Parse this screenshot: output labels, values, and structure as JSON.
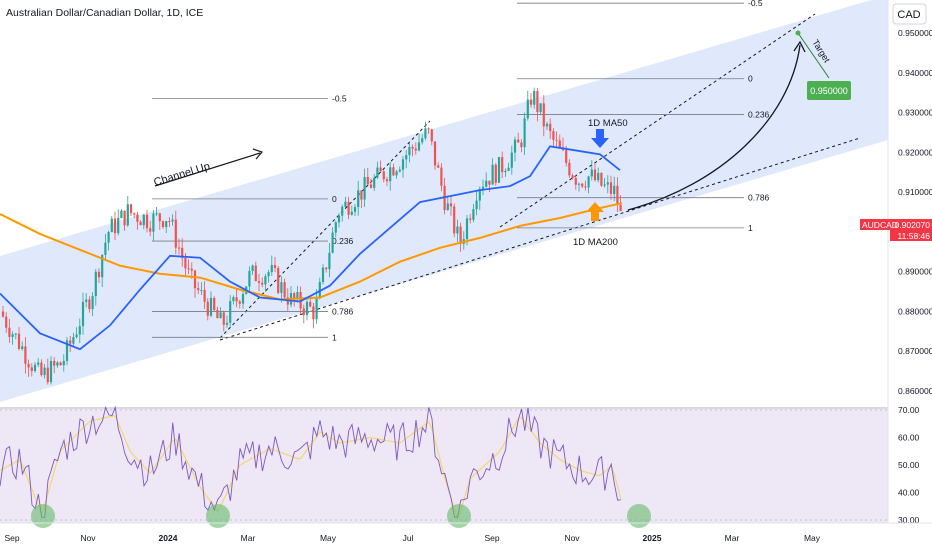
{
  "header": {
    "title": "Australian Dollar/Canadian Dollar, 1D, ICE",
    "currency": "CAD"
  },
  "chart_data": {
    "type": "candlestick",
    "symbol": "AUDCAD",
    "interval": "1D",
    "price_ticks": [
      "0.950000",
      "0.940000",
      "0.930000",
      "0.920000",
      "0.910000",
      "0.900000",
      "0.890000",
      "0.880000",
      "0.870000",
      "0.860000"
    ],
    "rsi_ticks": [
      "70.00",
      "60.00",
      "50.00",
      "40.00",
      "30.00"
    ],
    "time_ticks": [
      "Sep",
      "Nov",
      "2024",
      "Mar",
      "May",
      "Jul",
      "Sep",
      "Nov",
      "2025",
      "Mar",
      "May"
    ],
    "last_price": "0.902070",
    "countdown": "11:58:46",
    "target_price": "0.950000",
    "channel_label": "Channel Up",
    "target_label": "Target",
    "ma50_label": "1D MA50",
    "ma200_label": "1D MA200",
    "fib_left": {
      "levels": [
        "-0.5",
        "0",
        "0.236",
        "0.786",
        "1"
      ],
      "prices": [
        0.9335,
        0.9083,
        0.8977,
        0.88,
        0.8735
      ]
    },
    "fib_right": {
      "levels": [
        "-0.5",
        "0",
        "0.236",
        "0.786",
        "1"
      ],
      "prices": [
        0.9575,
        0.9385,
        0.9295,
        0.9086,
        0.901
      ]
    },
    "colors": {
      "up": "#26a69a",
      "down": "#ef5350",
      "ma50": "#2962ff",
      "ma200": "#ff9800",
      "channel": "#d6e2fb",
      "rsi": "#7e57c2",
      "rsi_ma": "#f5d76e",
      "rsi_bg": "#ede7f6",
      "target_box": "#4caf50",
      "price_box": "#f23645"
    }
  }
}
